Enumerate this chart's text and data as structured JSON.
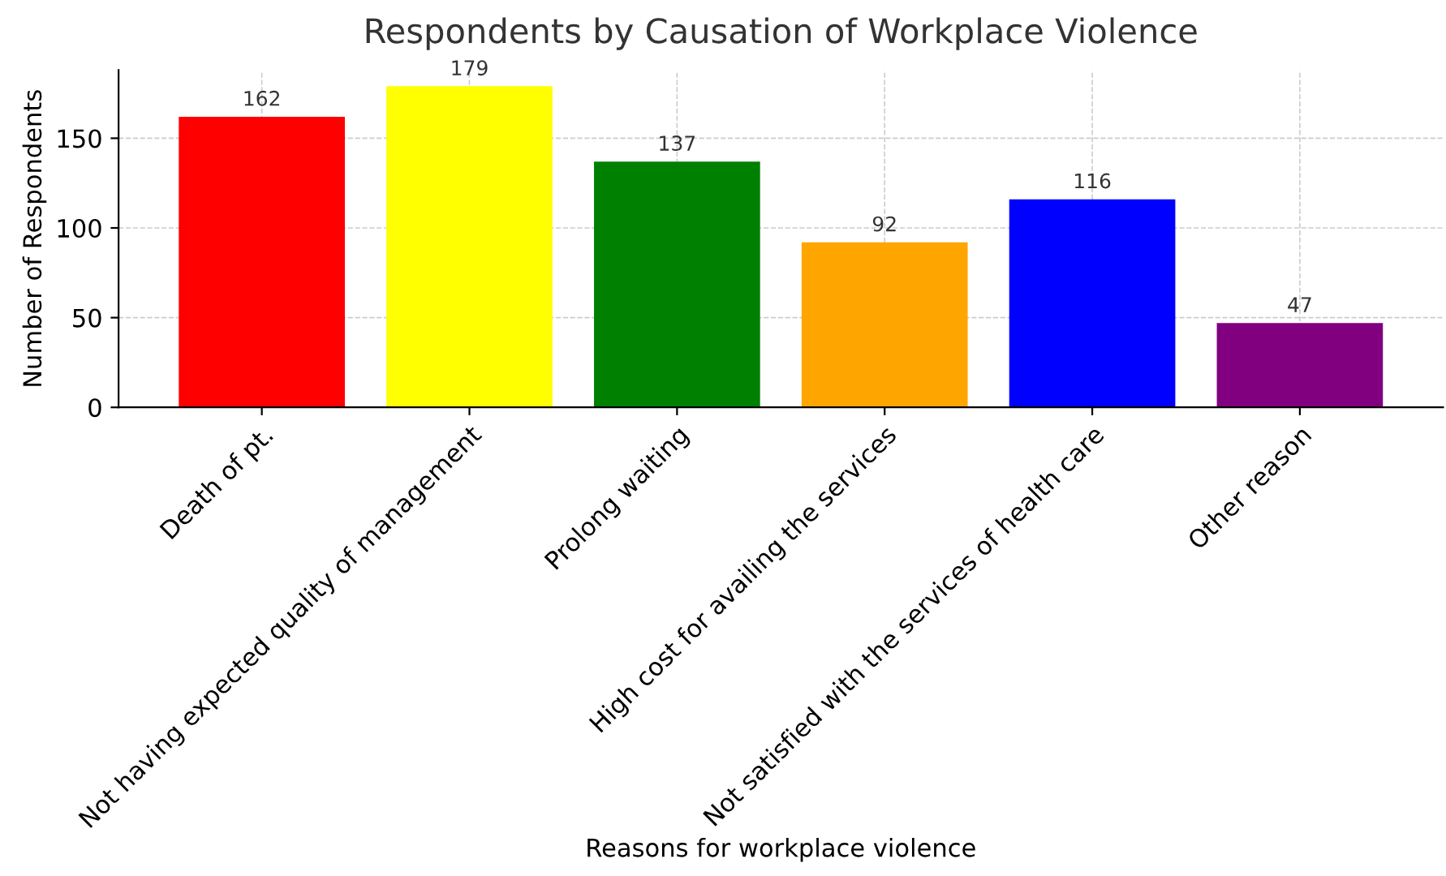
{
  "chart_data": {
    "type": "bar",
    "title": "Respondents by Causation of Workplace Violence",
    "xlabel": "Reasons for workplace violence",
    "ylabel": "Number of Respondents",
    "categories": [
      "Death of pt.",
      "Not having expected quality of management",
      "Prolong waiting",
      "High cost for availing the services",
      "Not satisfied with the services of health care",
      "Other reason"
    ],
    "values": [
      162,
      179,
      137,
      92,
      116,
      47
    ],
    "colors": [
      "#ff0000",
      "#ffff00",
      "#008000",
      "#ffa500",
      "#0000ff",
      "#800080"
    ],
    "ylim": [
      0,
      188
    ],
    "yticks": [
      0,
      50,
      100,
      150
    ],
    "grid": true,
    "data_labels": true
  }
}
